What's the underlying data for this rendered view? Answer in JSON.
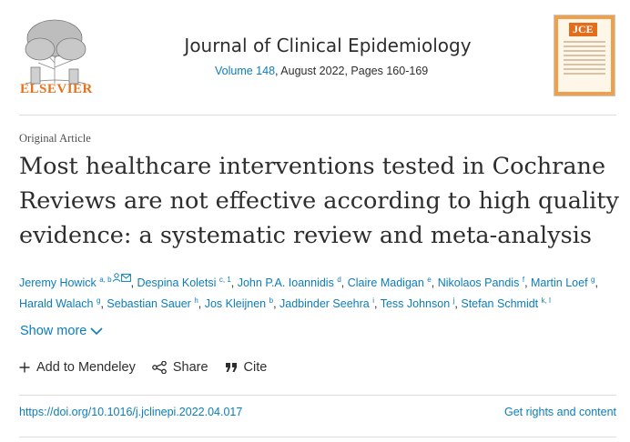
{
  "header": {
    "publisher": "ELSEVIER",
    "journal_title": "Journal of Clinical Epidemiology",
    "volume_link": "Volume 148",
    "issue_info": ", August 2022, Pages 160-169",
    "cover_label": "JCE"
  },
  "article": {
    "type": "Original Article",
    "title": "Most healthcare interventions tested in Cochrane Reviews are not effective according to high quality evidence: a systematic review and meta-analysis"
  },
  "authors": [
    {
      "name": "Jeremy Howick",
      "sup": "a, b"
    },
    {
      "name": "Despina Koletsi",
      "sup": "c, 1"
    },
    {
      "name": "John P.A. Ioannidis",
      "sup": "d"
    },
    {
      "name": "Claire Madigan",
      "sup": "e"
    },
    {
      "name": "Nikolaos Pandis",
      "sup": "f"
    },
    {
      "name": "Martin Loef",
      "sup": "g"
    },
    {
      "name": "Harald Walach",
      "sup": "g"
    },
    {
      "name": "Sebastian Sauer",
      "sup": "h"
    },
    {
      "name": "Jos Kleijnen",
      "sup": "b"
    },
    {
      "name": "Jadbinder Seehra",
      "sup": "i"
    },
    {
      "name": "Tess Johnson",
      "sup": "j"
    },
    {
      "name": "Stefan Schmidt",
      "sup": "k, l"
    }
  ],
  "controls": {
    "show_more": "Show more",
    "add_to_mendeley": "Add to Mendeley",
    "share": "Share",
    "cite": "Cite"
  },
  "footer": {
    "doi": "https://doi.org/10.1016/j.jclinepi.2022.04.017",
    "rights": "Get rights and content"
  },
  "colors": {
    "link": "#0c7dbb",
    "text": "#2e2e2e",
    "publisher_orange": "#e9711c"
  },
  "icons": [
    "elsevier-tree-logo",
    "person-icon",
    "envelope-icon",
    "chevron-down-icon",
    "plus-icon",
    "share-icon",
    "quote-icon"
  ]
}
